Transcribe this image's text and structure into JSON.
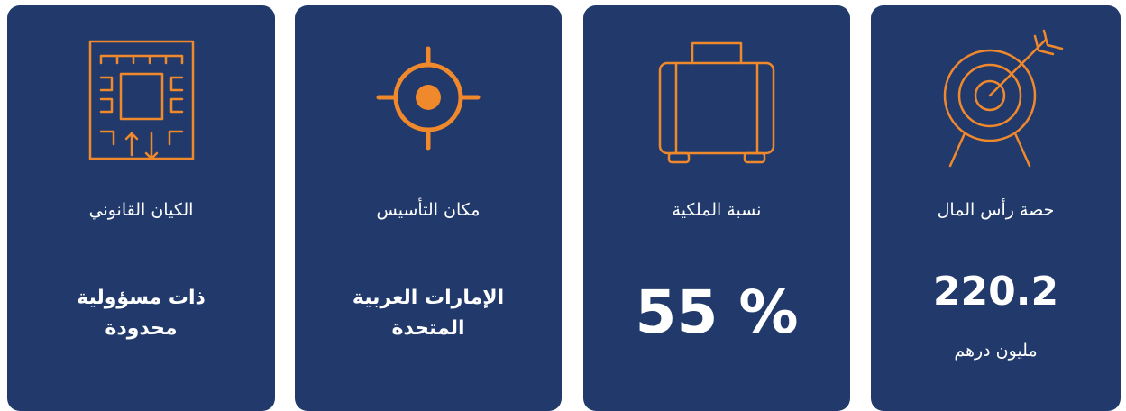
{
  "cards": [
    {
      "label": "حصة رأس المال",
      "value": "220.2",
      "unit": "مليون درهم"
    },
    {
      "label": "نسبة الملكية",
      "value": "% 55"
    },
    {
      "label": "مكان التأسيس",
      "value_lines": [
        "الإمارات العربية",
        "المتحدة"
      ]
    },
    {
      "label": "الكيان القانوني",
      "value_lines": [
        "ذات مسؤولية",
        "محدودة"
      ]
    }
  ]
}
